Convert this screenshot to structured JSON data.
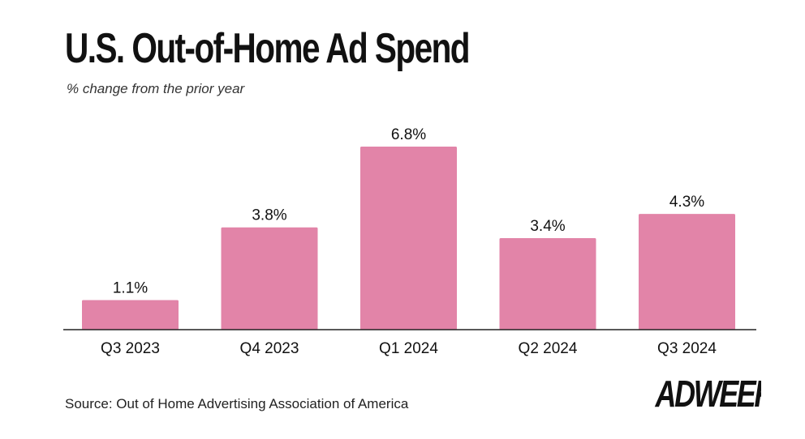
{
  "header": {
    "title": "U.S. Out-of-Home Ad Spend",
    "subtitle": "% change from the prior year"
  },
  "footer": {
    "source": "Source: Out of Home Advertising Association of America",
    "brand": "ADWEEK"
  },
  "colors": {
    "bar": "#e284a8",
    "axis": "#222222",
    "text": "#111111"
  },
  "chart_data": {
    "type": "bar",
    "title": "U.S. Out-of-Home Ad Spend",
    "subtitle": "% change from the prior year",
    "xlabel": "",
    "ylabel": "% change from the prior year",
    "categories": [
      "Q3 2023",
      "Q4 2023",
      "Q1 2024",
      "Q2 2024",
      "Q3 2024"
    ],
    "values": [
      1.1,
      3.8,
      6.8,
      3.4,
      4.3
    ],
    "data_labels": [
      "1.1%",
      "3.8%",
      "6.8%",
      "3.4%",
      "4.3%"
    ],
    "ylim": [
      0,
      6.8
    ],
    "grid": false,
    "legend": "none"
  }
}
